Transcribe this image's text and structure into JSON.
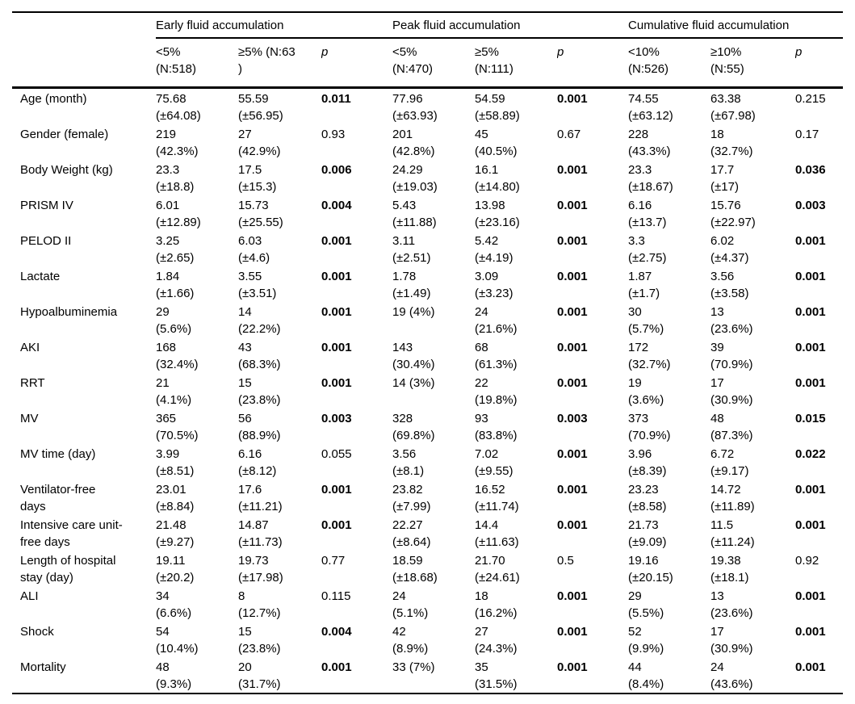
{
  "table": {
    "groups": [
      {
        "label": "Early fluid accumulation"
      },
      {
        "label": "Peak fluid accumulation"
      },
      {
        "label": "Cumulative fluid accumulation"
      }
    ],
    "subheaders": [
      "<5%\n(N:518)",
      "≥5% (N:63\n)",
      "p",
      "<5%\n(N:470)",
      "≥5%\n(N:111)",
      "p",
      "<10%\n(N:526)",
      "≥10%\n(N:55)",
      "p"
    ],
    "rows": [
      {
        "label": "Age (month)",
        "cells": [
          {
            "t": "75.68\n(±64.08)"
          },
          {
            "t": "55.59\n(±56.95)"
          },
          {
            "t": "0.011",
            "b": true
          },
          {
            "t": "77.96\n(±63.93)"
          },
          {
            "t": "54.59\n(±58.89)"
          },
          {
            "t": "0.001",
            "b": true
          },
          {
            "t": "74.55\n(±63.12)"
          },
          {
            "t": "63.38\n(±67.98)"
          },
          {
            "t": "0.215"
          }
        ]
      },
      {
        "label": "Gender (female)",
        "cells": [
          {
            "t": "219\n(42.3%)"
          },
          {
            "t": "27\n(42.9%)"
          },
          {
            "t": "0.93"
          },
          {
            "t": "201\n(42.8%)"
          },
          {
            "t": "45\n(40.5%)"
          },
          {
            "t": "0.67"
          },
          {
            "t": "228\n(43.3%)"
          },
          {
            "t": "18\n(32.7%)"
          },
          {
            "t": "0.17"
          }
        ]
      },
      {
        "label": "Body Weight (kg)",
        "cells": [
          {
            "t": "23.3\n(±18.8)"
          },
          {
            "t": "17.5\n(±15.3)"
          },
          {
            "t": "0.006",
            "b": true
          },
          {
            "t": "24.29\n(±19.03)"
          },
          {
            "t": "16.1\n(±14.80)"
          },
          {
            "t": "0.001",
            "b": true
          },
          {
            "t": "23.3\n(±18.67)"
          },
          {
            "t": "17.7\n(±17)"
          },
          {
            "t": "0.036",
            "b": true
          }
        ]
      },
      {
        "label": "PRISM IV",
        "cells": [
          {
            "t": "6.01\n(±12.89)"
          },
          {
            "t": "15.73\n(±25.55)"
          },
          {
            "t": "0.004",
            "b": true
          },
          {
            "t": "5.43\n(±11.88)"
          },
          {
            "t": "13.98\n(±23.16)"
          },
          {
            "t": "0.001",
            "b": true
          },
          {
            "t": "6.16\n(±13.7)"
          },
          {
            "t": "15.76\n(±22.97)"
          },
          {
            "t": "0.003",
            "b": true
          }
        ]
      },
      {
        "label": "PELOD II",
        "cells": [
          {
            "t": "3.25\n(±2.65)"
          },
          {
            "t": "6.03\n(±4.6)"
          },
          {
            "t": "0.001",
            "b": true
          },
          {
            "t": "3.11\n(±2.51)"
          },
          {
            "t": "5.42\n(±4.19)"
          },
          {
            "t": "0.001",
            "b": true
          },
          {
            "t": "3.3\n(±2.75)"
          },
          {
            "t": "6.02\n(±4.37)"
          },
          {
            "t": "0.001",
            "b": true
          }
        ]
      },
      {
        "label": "Lactate",
        "cells": [
          {
            "t": "1.84\n(±1.66)"
          },
          {
            "t": "3.55\n(±3.51)"
          },
          {
            "t": "0.001",
            "b": true
          },
          {
            "t": "1.78\n(±1.49)"
          },
          {
            "t": "3.09\n(±3.23)"
          },
          {
            "t": "0.001",
            "b": true
          },
          {
            "t": "1.87\n(±1.7)"
          },
          {
            "t": "3.56\n(±3.58)"
          },
          {
            "t": "0.001",
            "b": true
          }
        ]
      },
      {
        "label": "Hypoalbuminemia",
        "cells": [
          {
            "t": "29\n(5.6%)"
          },
          {
            "t": "14\n(22.2%)"
          },
          {
            "t": "0.001",
            "b": true
          },
          {
            "t": "19 (4%)"
          },
          {
            "t": "24\n(21.6%)"
          },
          {
            "t": "0.001",
            "b": true
          },
          {
            "t": "30\n(5.7%)"
          },
          {
            "t": "13\n(23.6%)"
          },
          {
            "t": "0.001",
            "b": true
          }
        ]
      },
      {
        "label": "AKI",
        "cells": [
          {
            "t": "168\n(32.4%)"
          },
          {
            "t": "43\n(68.3%)"
          },
          {
            "t": "0.001",
            "b": true
          },
          {
            "t": "143\n(30.4%)"
          },
          {
            "t": "68\n(61.3%)"
          },
          {
            "t": "0.001",
            "b": true
          },
          {
            "t": "172\n(32.7%)"
          },
          {
            "t": "39\n(70.9%)"
          },
          {
            "t": "0.001",
            "b": true
          }
        ]
      },
      {
        "label": "RRT",
        "cells": [
          {
            "t": "21\n(4.1%)"
          },
          {
            "t": "15\n(23.8%)"
          },
          {
            "t": "0.001",
            "b": true
          },
          {
            "t": "14 (3%)"
          },
          {
            "t": "22\n(19.8%)"
          },
          {
            "t": "0.001",
            "b": true
          },
          {
            "t": "19\n(3.6%)"
          },
          {
            "t": "17\n(30.9%)"
          },
          {
            "t": "0.001",
            "b": true
          }
        ]
      },
      {
        "label": "MV",
        "cells": [
          {
            "t": "365\n(70.5%)"
          },
          {
            "t": "56\n(88.9%)"
          },
          {
            "t": "0.003",
            "b": true
          },
          {
            "t": "328\n(69.8%)"
          },
          {
            "t": "93\n(83.8%)"
          },
          {
            "t": "0.003",
            "b": true
          },
          {
            "t": "373\n(70.9%)"
          },
          {
            "t": "48\n(87.3%)"
          },
          {
            "t": "0.015",
            "b": true
          }
        ]
      },
      {
        "label": "MV time (day)",
        "cells": [
          {
            "t": "3.99\n(±8.51)"
          },
          {
            "t": "6.16\n(±8.12)"
          },
          {
            "t": "0.055"
          },
          {
            "t": "3.56\n(±8.1)"
          },
          {
            "t": "7.02\n(±9.55)"
          },
          {
            "t": "0.001",
            "b": true
          },
          {
            "t": "3.96\n(±8.39)"
          },
          {
            "t": "6.72\n(±9.17)"
          },
          {
            "t": "0.022",
            "b": true
          }
        ]
      },
      {
        "label": "Ventilator-free\ndays",
        "cells": [
          {
            "t": "23.01\n(±8.84)"
          },
          {
            "t": "17.6\n(±11.21)"
          },
          {
            "t": "0.001",
            "b": true
          },
          {
            "t": "23.82\n(±7.99)"
          },
          {
            "t": "16.52\n(±11.74)"
          },
          {
            "t": "0.001",
            "b": true
          },
          {
            "t": "23.23\n(±8.58)"
          },
          {
            "t": "14.72\n(±11.89)"
          },
          {
            "t": "0.001",
            "b": true
          }
        ]
      },
      {
        "label": "Intensive care unit-\nfree days",
        "cells": [
          {
            "t": "21.48\n(±9.27)"
          },
          {
            "t": "14.87\n(±11.73)"
          },
          {
            "t": "0.001",
            "b": true
          },
          {
            "t": "22.27\n(±8.64)"
          },
          {
            "t": "14.4\n(±11.63)"
          },
          {
            "t": "0.001",
            "b": true
          },
          {
            "t": "21.73\n(±9.09)"
          },
          {
            "t": "11.5\n(±11.24)"
          },
          {
            "t": "0.001",
            "b": true
          }
        ]
      },
      {
        "label": "Length of hospital\nstay (day)",
        "cells": [
          {
            "t": "19.11\n(±20.2)"
          },
          {
            "t": "19.73\n(±17.98)"
          },
          {
            "t": "0.77"
          },
          {
            "t": "18.59\n(±18.68)"
          },
          {
            "t": "21.70\n(±24.61)"
          },
          {
            "t": "0.5"
          },
          {
            "t": "19.16\n(±20.15)"
          },
          {
            "t": "19.38\n(±18.1)"
          },
          {
            "t": "0.92"
          }
        ]
      },
      {
        "label": "ALI",
        "cells": [
          {
            "t": "34\n(6.6%)"
          },
          {
            "t": "8\n(12.7%)"
          },
          {
            "t": "0.115"
          },
          {
            "t": "24\n(5.1%)"
          },
          {
            "t": "18\n(16.2%)"
          },
          {
            "t": "0.001",
            "b": true
          },
          {
            "t": "29\n(5.5%)"
          },
          {
            "t": "13\n(23.6%)"
          },
          {
            "t": "0.001",
            "b": true
          }
        ]
      },
      {
        "label": "Shock",
        "cells": [
          {
            "t": "54\n(10.4%)"
          },
          {
            "t": "15\n(23.8%)"
          },
          {
            "t": "0.004",
            "b": true
          },
          {
            "t": "42\n(8.9%)"
          },
          {
            "t": "27\n(24.3%)"
          },
          {
            "t": "0.001",
            "b": true
          },
          {
            "t": "52\n(9.9%)"
          },
          {
            "t": "17\n(30.9%)"
          },
          {
            "t": "0.001",
            "b": true
          }
        ]
      },
      {
        "label": "Mortality",
        "cells": [
          {
            "t": "48\n(9.3%)"
          },
          {
            "t": "20\n(31.7%)"
          },
          {
            "t": "0.001",
            "b": true
          },
          {
            "t": "33 (7%)"
          },
          {
            "t": "35\n(31.5%)"
          },
          {
            "t": "0.001",
            "b": true
          },
          {
            "t": "44\n(8.4%)"
          },
          {
            "t": "24\n(43.6%)"
          },
          {
            "t": "0.001",
            "b": true
          }
        ]
      }
    ]
  }
}
